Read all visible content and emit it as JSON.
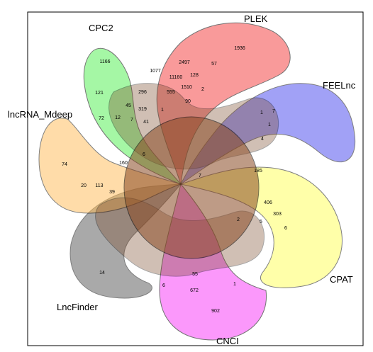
{
  "sets": [
    {
      "name": "CPC2",
      "color": "#5CF25C"
    },
    {
      "name": "PLEK",
      "color": "#F54848"
    },
    {
      "name": "FEELnc",
      "color": "#4545EE"
    },
    {
      "name": "CPAT",
      "color": "#FFFF55"
    },
    {
      "name": "CNCI",
      "color": "#F844F8"
    },
    {
      "name": "LncFinder",
      "color": "#555555"
    },
    {
      "name": "lncRNA_Mdeep",
      "color": "#FFBB55"
    }
  ],
  "counts": [
    "1166",
    "1077",
    "2497",
    "1936",
    "11160",
    "128",
    "57",
    "1510",
    "555",
    "2",
    "90",
    "296",
    "121",
    "45",
    "319",
    "1",
    "72",
    "12",
    "7",
    "41",
    "6",
    "1",
    "7",
    "1",
    "4",
    "160",
    "74",
    "7",
    "185",
    "20",
    "113",
    "39",
    "406",
    "303",
    "5",
    "6",
    "2",
    "14",
    "6",
    "55",
    "672",
    "1",
    "902"
  ]
}
